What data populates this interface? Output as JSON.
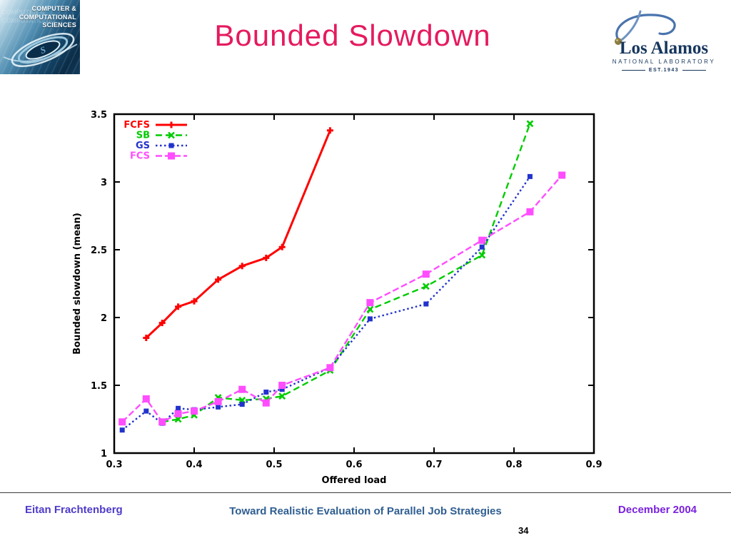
{
  "header": {
    "title": "Bounded Slowdown",
    "ccs_logo": {
      "line1": "COMPUTER &",
      "line2": "COMPUTATIONAL",
      "line3": "SCIENCES"
    },
    "lanl_logo": {
      "name": "Los Alamos",
      "subtitle": "NATIONAL LABORATORY",
      "est": "EST.1943"
    }
  },
  "footer": {
    "author": "Eitan Frachtenberg",
    "center_title": "Toward Realistic Evaluation of Parallel Job Strategies",
    "date": "December 2004",
    "page_number": "34"
  },
  "colors": {
    "title": "#e51a5f",
    "author": "#4d3bc9",
    "center_title": "#2f5e91",
    "date": "#7a22dd",
    "fcfs": "#ff0000",
    "sb": "#00cc00",
    "gs": "#2233cc",
    "fcs": "#ff4dff"
  },
  "chart_data": {
    "type": "line",
    "title": "",
    "xlabel": "Offered load",
    "ylabel": "Bounded slowdown (mean)",
    "xlim": [
      0.3,
      0.9
    ],
    "ylim": [
      1,
      3.5
    ],
    "xticks": [
      0.3,
      0.4,
      0.5,
      0.6,
      0.7,
      0.8,
      0.9
    ],
    "yticks": [
      1,
      1.5,
      2,
      2.5,
      3,
      3.5
    ],
    "grid": false,
    "legend_position": "top-left-inside",
    "series": [
      {
        "name": "FCFS",
        "color": "#ff0000",
        "style": "solid",
        "marker": "plus",
        "marker_size": 4.5,
        "points": [
          [
            0.34,
            1.85
          ],
          [
            0.36,
            1.96
          ],
          [
            0.38,
            2.08
          ],
          [
            0.4,
            2.12
          ],
          [
            0.43,
            2.28
          ],
          [
            0.46,
            2.38
          ],
          [
            0.49,
            2.44
          ],
          [
            0.51,
            2.52
          ],
          [
            0.57,
            3.38
          ]
        ]
      },
      {
        "name": "SB",
        "color": "#00cc00",
        "style": "dashed",
        "marker": "x",
        "marker_size": 4,
        "points": [
          [
            0.36,
            1.23
          ],
          [
            0.38,
            1.25
          ],
          [
            0.4,
            1.28
          ],
          [
            0.43,
            1.41
          ],
          [
            0.46,
            1.39
          ],
          [
            0.49,
            1.4
          ],
          [
            0.51,
            1.42
          ],
          [
            0.57,
            1.61
          ],
          [
            0.62,
            2.06
          ],
          [
            0.69,
            2.23
          ],
          [
            0.76,
            2.46
          ],
          [
            0.82,
            3.43
          ]
        ]
      },
      {
        "name": "GS",
        "color": "#2233cc",
        "style": "dotted",
        "marker": "square",
        "marker_size": 3.5,
        "points": [
          [
            0.31,
            1.17
          ],
          [
            0.34,
            1.31
          ],
          [
            0.36,
            1.22
          ],
          [
            0.38,
            1.33
          ],
          [
            0.4,
            1.32
          ],
          [
            0.43,
            1.34
          ],
          [
            0.46,
            1.36
          ],
          [
            0.49,
            1.45
          ],
          [
            0.51,
            1.47
          ],
          [
            0.57,
            1.63
          ],
          [
            0.62,
            1.99
          ],
          [
            0.69,
            2.1
          ],
          [
            0.76,
            2.52
          ],
          [
            0.82,
            3.04
          ]
        ]
      },
      {
        "name": "FCS",
        "color": "#ff4dff",
        "style": "dashdot",
        "marker": "square",
        "marker_size": 5,
        "points": [
          [
            0.31,
            1.23
          ],
          [
            0.34,
            1.4
          ],
          [
            0.36,
            1.23
          ],
          [
            0.38,
            1.29
          ],
          [
            0.4,
            1.31
          ],
          [
            0.43,
            1.38
          ],
          [
            0.46,
            1.47
          ],
          [
            0.49,
            1.37
          ],
          [
            0.51,
            1.5
          ],
          [
            0.57,
            1.63
          ],
          [
            0.62,
            2.11
          ],
          [
            0.69,
            2.32
          ],
          [
            0.76,
            2.57
          ],
          [
            0.82,
            2.78
          ],
          [
            0.86,
            3.05
          ]
        ]
      }
    ]
  }
}
